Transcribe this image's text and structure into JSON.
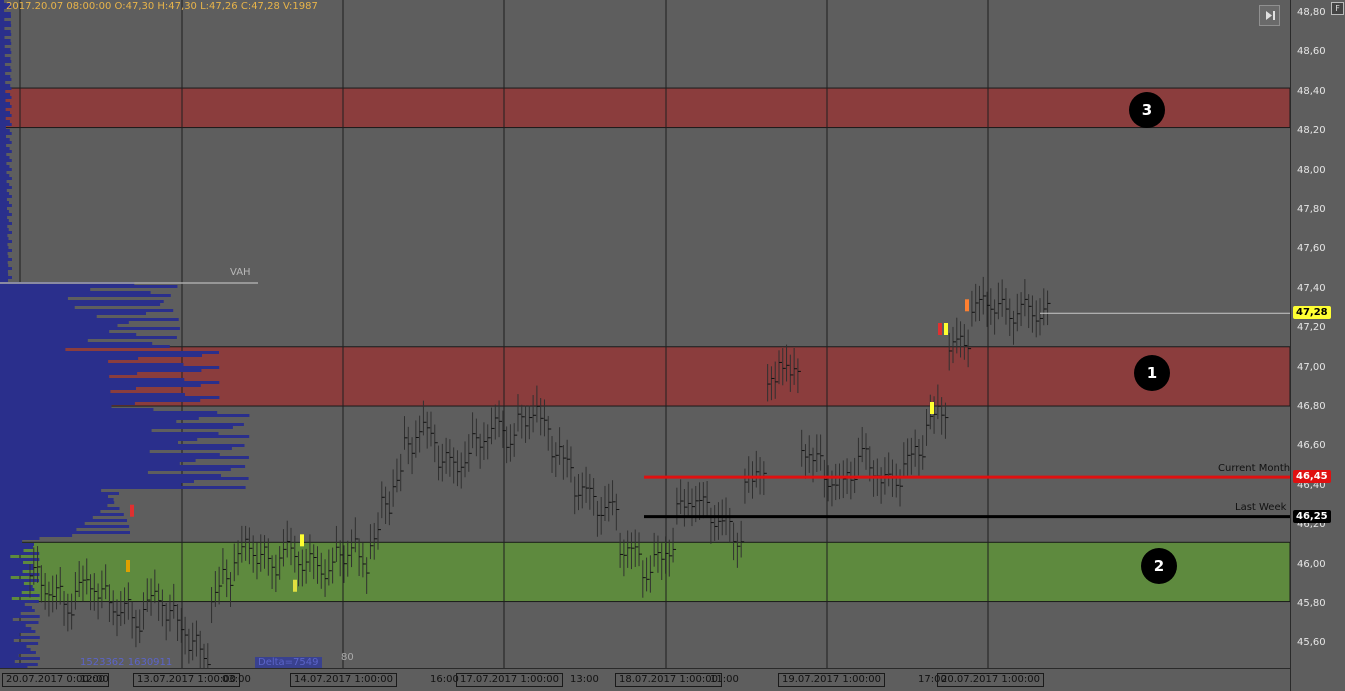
{
  "header": {
    "ohlc": "2017.20.07 08:00:00   O:47,30   H:47,30   L:47,26   C:47,28   V:1987"
  },
  "price_axis": {
    "ticks": [
      "48,80",
      "48,60",
      "48,40",
      "48,20",
      "48,00",
      "47,80",
      "47,60",
      "47,40",
      "47,20",
      "47,00",
      "46,80",
      "46,60",
      "46,40",
      "46,20",
      "46,00",
      "45,80",
      "45,60"
    ],
    "current_price": "47,28",
    "current_month_price": "46,45",
    "last_week_price": "46,25"
  },
  "zones": [
    {
      "label": "3",
      "from": 48.22,
      "to": 48.42,
      "color": "#8b3d3d"
    },
    {
      "label": "1",
      "from": 46.81,
      "to": 47.11,
      "color": "#8b3d3d"
    },
    {
      "label": "2",
      "from": 45.82,
      "to": 46.12,
      "color": "#5e8a3e"
    }
  ],
  "levels": {
    "current_month": {
      "label": "Current Month",
      "value": 46.45,
      "color": "#e01010"
    },
    "last_week": {
      "label": "Last Week",
      "value": 46.25,
      "color": "#000000"
    }
  },
  "profile": {
    "vah_label": "VAH",
    "stat_left": "1523362",
    "stat_right": "1630911",
    "delta_label": "Delta=7549",
    "value_80": "80"
  },
  "time_axis": {
    "labels": [
      "20.07.2017 0:00:00",
      "12:00",
      "13.07.2017 1:00:00",
      "03:00",
      "14.07.2017 1:00:00",
      "16:00",
      "17.07.2017 1:00:00",
      "13:00",
      "18.07.2017 1:00:00",
      "11:00",
      "19.07.2017 1:00:00",
      "17:00",
      "20.07.2017 1:00:00"
    ]
  },
  "colors": {
    "background": "#5e5e5e",
    "grid": "#1f1f1f",
    "profile": "#2a2f8c",
    "bars": "#303030",
    "current_price_label": "#ffff33"
  },
  "chart_data": {
    "type": "ohlc",
    "ylim": [
      45.5,
      48.85
    ],
    "series": [
      {
        "values": [
          45.95,
          45.9,
          45.85,
          45.8,
          45.88,
          45.92,
          45.85,
          45.8,
          45.78,
          45.72,
          45.8,
          45.85,
          45.75,
          45.7,
          45.6,
          45.55,
          45.85,
          45.95,
          46.05,
          46.1,
          46.05,
          46.0,
          46.08,
          46.05,
          46.02,
          46.0,
          45.98,
          46.05,
          46.1,
          46.0,
          46.15,
          46.3,
          46.45,
          46.6,
          46.7,
          46.65,
          46.55,
          46.5,
          46.55,
          46.62,
          46.68,
          46.7,
          46.65,
          46.72,
          46.8,
          46.7,
          46.6,
          46.5,
          46.4,
          46.35,
          46.3,
          46.28,
          46.1,
          46.05,
          45.98,
          46.02,
          46.1,
          46.28,
          46.35,
          46.3,
          46.25,
          46.2,
          46.15,
          46.4,
          46.5,
          46.9,
          47.05,
          46.95,
          46.6,
          46.52,
          46.45,
          46.4,
          46.48,
          46.55,
          46.5,
          46.42,
          46.45,
          46.52,
          46.6,
          46.72,
          46.8,
          47.1,
          47.15,
          47.3,
          47.35,
          47.3,
          47.28,
          47.3,
          47.29,
          47.28
        ]
      }
    ]
  }
}
